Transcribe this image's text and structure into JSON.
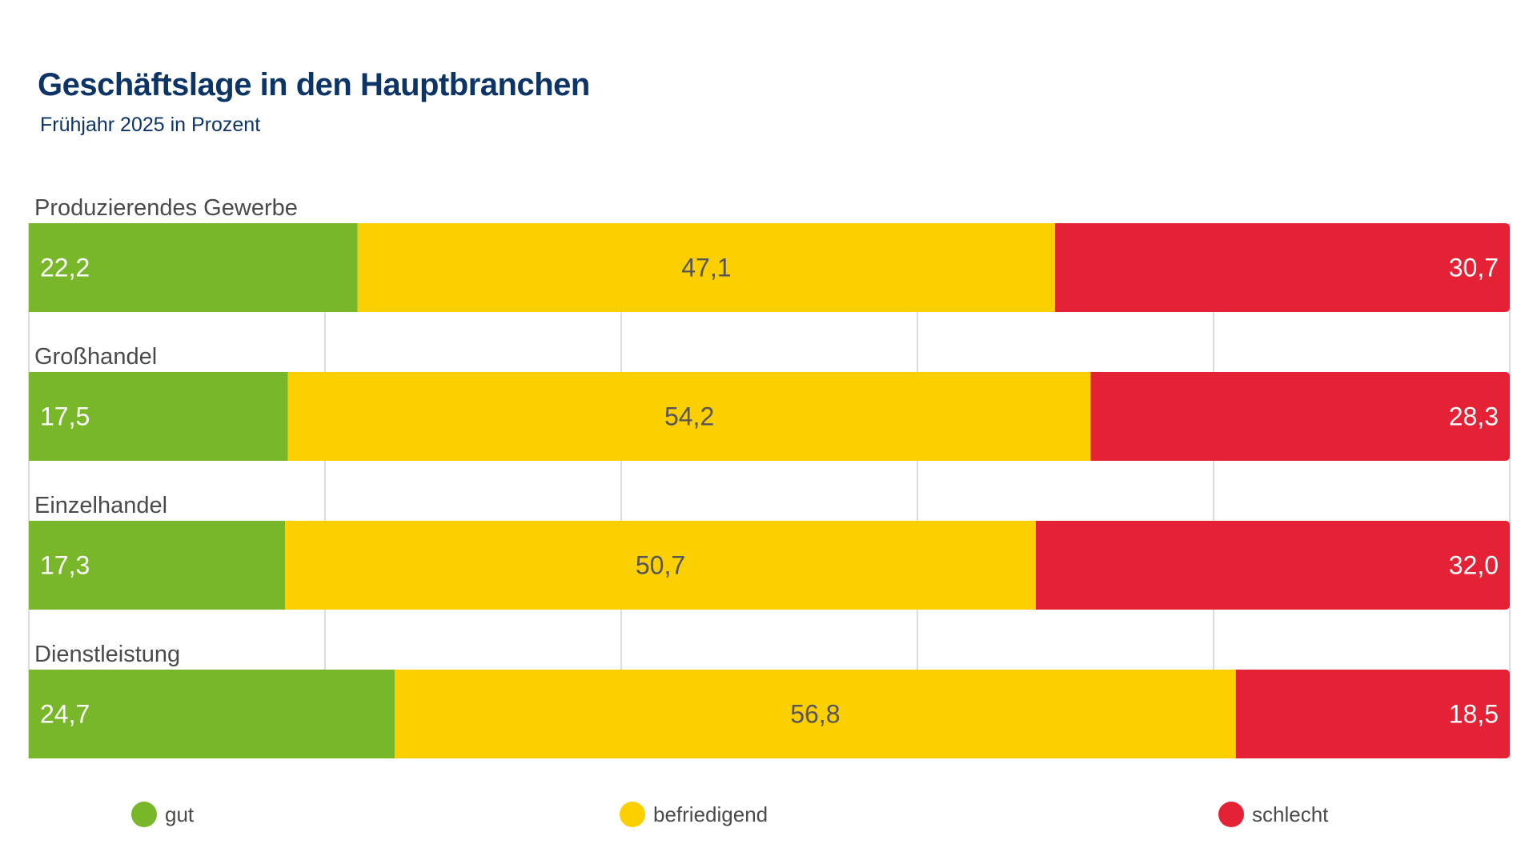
{
  "chart_data": {
    "type": "bar",
    "orientation": "horizontal-stacked-100",
    "title": "Geschäftslage in den Hauptbranchen",
    "subtitle": "Frühjahr 2025 in Prozent",
    "categories": [
      "Produzierendes Gewerbe",
      "Großhandel",
      "Einzelhandel",
      "Dienstleistung"
    ],
    "series": [
      {
        "name": "gut",
        "color": "#78b72a",
        "values": [
          22.2,
          17.5,
          17.3,
          24.7
        ],
        "labels": [
          "22,2",
          "17,5",
          "17,3",
          "24,7"
        ]
      },
      {
        "name": "befriedigend",
        "color": "#fccf00",
        "values": [
          47.1,
          54.2,
          50.7,
          56.8
        ],
        "labels": [
          "47,1",
          "54,2",
          "50,7",
          "56,8"
        ]
      },
      {
        "name": "schlecht",
        "color": "#e52235",
        "values": [
          30.7,
          28.3,
          32.0,
          18.5
        ],
        "labels": [
          "30,7",
          "28,3",
          "32,0",
          "18,5"
        ]
      }
    ],
    "xlim": [
      0,
      100
    ],
    "grid": true,
    "legend_position": "bottom"
  }
}
